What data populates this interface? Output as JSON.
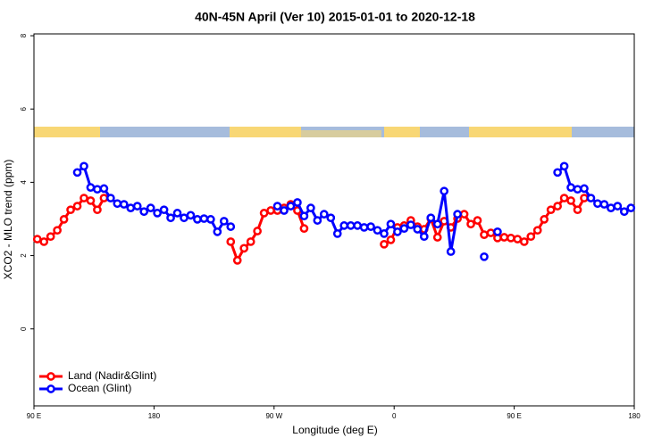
{
  "chart_data": {
    "type": "line",
    "title": "40N-45N April (Ver 10)   2015-01-01 to 2020-12-18",
    "x_label": "Longitude (deg E)",
    "y_label": "XCO2 - MLO trend (ppm)",
    "xlim": [
      90,
      540
    ],
    "ylim": [
      -2.1,
      8.05
    ],
    "xticks": [
      {
        "value": 90,
        "label": "90 E"
      },
      180,
      {
        "value": 270,
        "label": "90 W"
      },
      {
        "value": 360,
        "label": "0"
      },
      {
        "value": 450,
        "label": "90 E"
      },
      {
        "value": 540,
        "label": "180"
      }
    ],
    "yticks": [
      0,
      2,
      4,
      6,
      8
    ],
    "legend": "bottomleft",
    "x": [
      92.5,
      97.5,
      102.5,
      107.5,
      112.5,
      117.5,
      122.5,
      127.5,
      132.5,
      137.5,
      142.5,
      147.5,
      152.5,
      157.5,
      162.5,
      167.5,
      172.5,
      177.5,
      182.5,
      187.5,
      192.5,
      197.5,
      202.5,
      207.5,
      212.5,
      217.5,
      222.5,
      227.5,
      232.5,
      237.5,
      242.5,
      247.5,
      252.5,
      257.5,
      262.5,
      267.5,
      272.5,
      277.5,
      282.5,
      287.5,
      292.5,
      297.5,
      302.5,
      307.5,
      312.5,
      317.5,
      322.5,
      327.5,
      332.5,
      337.5,
      342.5,
      347.5,
      352.5,
      357.5,
      362.5,
      367.5,
      372.5,
      377.5,
      382.5,
      387.5,
      392.5,
      397.5,
      402.5,
      407.5,
      412.5,
      417.5,
      422.5,
      427.5,
      432.5,
      437.5,
      442.5,
      447.5,
      452.5,
      457.5,
      462.5,
      467.5,
      472.5,
      477.5,
      482.5,
      487.5,
      492.5,
      497.5,
      502.5,
      507.5,
      512.5,
      517.5,
      522.5,
      527.5,
      532.5,
      537.5
    ],
    "series": [
      {
        "name": "Land (Nadir&Glint)",
        "color": "#ff0000",
        "values": [
          2.45,
          2.38,
          2.52,
          2.69,
          2.99,
          3.25,
          3.35,
          3.57,
          3.5,
          3.25,
          3.57,
          null,
          null,
          null,
          null,
          null,
          null,
          null,
          null,
          null,
          null,
          null,
          null,
          null,
          null,
          null,
          null,
          null,
          null,
          2.38,
          1.87,
          2.2,
          2.38,
          2.67,
          3.16,
          3.23,
          3.23,
          3.3,
          3.4,
          3.23,
          2.74,
          null,
          null,
          null,
          null,
          null,
          null,
          null,
          null,
          null,
          null,
          null,
          2.31,
          2.43,
          2.77,
          2.82,
          2.96,
          2.79,
          2.72,
          3.01,
          2.5,
          2.94,
          2.77,
          3.01,
          3.13,
          2.86,
          2.96,
          2.57,
          2.62,
          2.48,
          2.5,
          2.48,
          2.45,
          2.38,
          2.52,
          2.69,
          2.99,
          3.25,
          3.35,
          3.57,
          3.5,
          3.25,
          3.57,
          null,
          null,
          null,
          null,
          null,
          null,
          null
        ]
      },
      {
        "name": "Ocean (Glint)",
        "color": "#0000ff",
        "values": [
          null,
          null,
          null,
          null,
          null,
          null,
          4.27,
          4.44,
          3.86,
          3.81,
          3.83,
          3.57,
          3.42,
          3.4,
          3.3,
          3.35,
          3.2,
          3.3,
          3.16,
          3.25,
          3.03,
          3.16,
          3.03,
          3.1,
          2.99,
          3.01,
          2.99,
          2.65,
          2.94,
          2.79,
          null,
          null,
          null,
          null,
          null,
          null,
          3.35,
          3.23,
          3.35,
          3.45,
          3.08,
          3.3,
          2.96,
          3.13,
          3.03,
          2.6,
          2.82,
          2.82,
          2.82,
          2.77,
          2.79,
          2.69,
          2.6,
          2.86,
          2.65,
          2.74,
          2.84,
          2.72,
          2.52,
          3.03,
          2.86,
          3.76,
          2.11,
          3.13,
          null,
          null,
          null,
          1.97,
          null,
          2.65,
          null,
          null,
          null,
          null,
          null,
          null,
          null,
          null,
          4.27,
          4.44,
          3.86,
          3.81,
          3.83,
          3.57,
          3.42,
          3.4,
          3.3,
          3.35,
          3.2,
          3.3
        ]
      }
    ]
  }
}
